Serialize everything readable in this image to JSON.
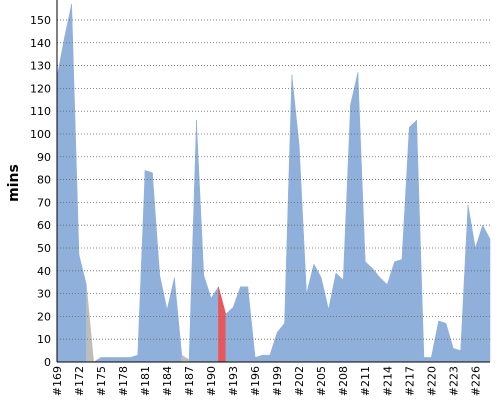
{
  "chart_data": {
    "type": "area",
    "y_label": "mins",
    "categories": [
      "#169",
      null,
      null,
      "#172",
      null,
      null,
      "#175",
      null,
      null,
      "#178",
      null,
      null,
      "#181",
      null,
      null,
      "#184",
      null,
      null,
      "#187",
      null,
      null,
      "#190",
      null,
      null,
      "#193",
      null,
      null,
      "#196",
      null,
      null,
      "#199",
      null,
      null,
      "#202",
      null,
      null,
      "#205",
      null,
      null,
      "#208",
      null,
      null,
      "#211",
      null,
      null,
      "#214",
      null,
      null,
      "#217",
      null,
      null,
      "#220",
      null,
      null,
      "#223",
      null,
      null,
      "#226",
      null,
      null
    ],
    "series": [
      {
        "color": "#8fb0db",
        "values": [
          125,
          142,
          157,
          47,
          34,
          0,
          2,
          2,
          2,
          2,
          2,
          3,
          84,
          83,
          38,
          23,
          37,
          3,
          1,
          106,
          38,
          28,
          33,
          21,
          24,
          33,
          33,
          2,
          3,
          3,
          13,
          17,
          126,
          95,
          30,
          43,
          37,
          23,
          39,
          36,
          113,
          127,
          44,
          41,
          37,
          34,
          44,
          45,
          103,
          106,
          2,
          2,
          18,
          17,
          6,
          5,
          69,
          50,
          60,
          54
        ],
        "colors": [
          "#8fb0db",
          "#8fb0db",
          "#8fb0db",
          "#8fb0db",
          "#8fb0db",
          "#bdbdbd",
          "#8fb0db",
          "#8fb0db",
          "#8fb0db",
          "#8fb0db",
          "#8fb0db",
          "#8fb0db",
          "#8fb0db",
          "#8fb0db",
          "#8fb0db",
          "#8fb0db",
          "#8fb0db",
          "#8fb0db",
          "#bdbdbd",
          "#8fb0db",
          "#8fb0db",
          "#8fb0db",
          "#8fb0db",
          "#e8575a",
          "#8fb0db",
          "#8fb0db",
          "#8fb0db",
          "#8fb0db",
          "#8fb0db",
          "#8fb0db",
          "#8fb0db",
          "#8fb0db",
          "#8fb0db",
          "#8fb0db",
          "#8fb0db",
          "#8fb0db",
          "#8fb0db",
          "#8fb0db",
          "#8fb0db",
          "#8fb0db",
          "#8fb0db",
          "#8fb0db",
          "#8fb0db",
          "#8fb0db",
          "#8fb0db",
          "#8fb0db",
          "#8fb0db",
          "#8fb0db",
          "#8fb0db",
          "#8fb0db",
          "#8fb0db",
          "#8fb0db",
          "#8fb0db",
          "#8fb0db",
          "#8fb0db",
          "#8fb0db",
          "#8fb0db",
          "#8fb0db",
          "#8fb0db",
          "#8fb0db"
        ]
      }
    ],
    "ylim": [
      0,
      157
    ],
    "yticks": [
      0,
      10,
      20,
      30,
      40,
      50,
      60,
      70,
      80,
      90,
      100,
      110,
      120,
      130,
      140,
      150
    ],
    "grid": true
  }
}
